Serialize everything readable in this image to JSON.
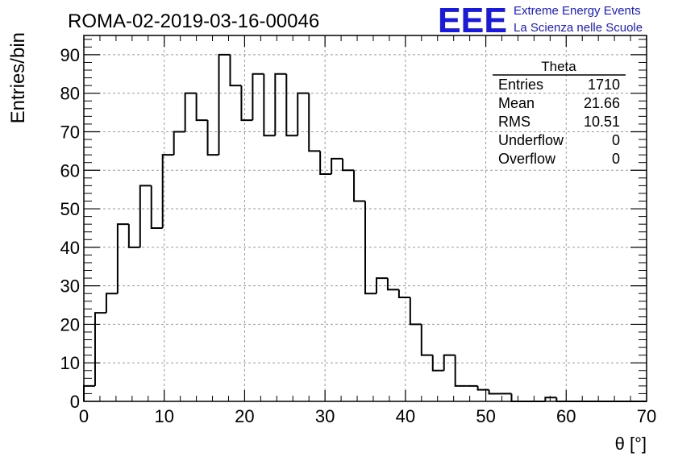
{
  "header": {
    "title": "ROMA-02-2019-03-16-00046",
    "logo_text": "EEE",
    "logo_line1": "Extreme Energy Events",
    "logo_line2": "La Scienza nelle Scuole",
    "logo_color": "#1a1adb"
  },
  "stats": {
    "name": "Theta",
    "rows": [
      {
        "label": "Entries",
        "value": "1710"
      },
      {
        "label": "Mean",
        "value": "21.66"
      },
      {
        "label": "RMS",
        "value": "10.51"
      },
      {
        "label": "Underflow",
        "value": "0"
      },
      {
        "label": "Overflow",
        "value": "0"
      }
    ]
  },
  "chart_data": {
    "type": "bar",
    "style": "step-histogram",
    "title": "ROMA-02-2019-03-16-00046",
    "xlabel": "θ [°]",
    "ylabel": "Entries/bin",
    "xlim": [
      0,
      70
    ],
    "ylim": [
      0,
      95
    ],
    "bin_width": 1.4,
    "bin_edges_start": 0,
    "x_ticks": [
      "0",
      "10",
      "20",
      "30",
      "40",
      "50",
      "60",
      "70"
    ],
    "y_ticks": [
      "0",
      "10",
      "20",
      "30",
      "40",
      "50",
      "60",
      "70",
      "80",
      "90"
    ],
    "grid": true,
    "values": [
      4,
      23,
      28,
      46,
      40,
      56,
      45,
      64,
      70,
      80,
      73,
      64,
      90,
      82,
      73,
      85,
      69,
      85,
      69,
      80,
      65,
      59,
      63,
      60,
      52,
      28,
      32,
      29,
      27,
      20,
      12,
      8,
      12,
      4,
      4,
      3,
      2,
      2,
      0,
      0,
      0,
      1,
      0,
      0,
      0,
      0,
      0,
      0,
      0,
      0
    ],
    "line_color": "#000000",
    "grid_color": "#9a9a9a"
  }
}
